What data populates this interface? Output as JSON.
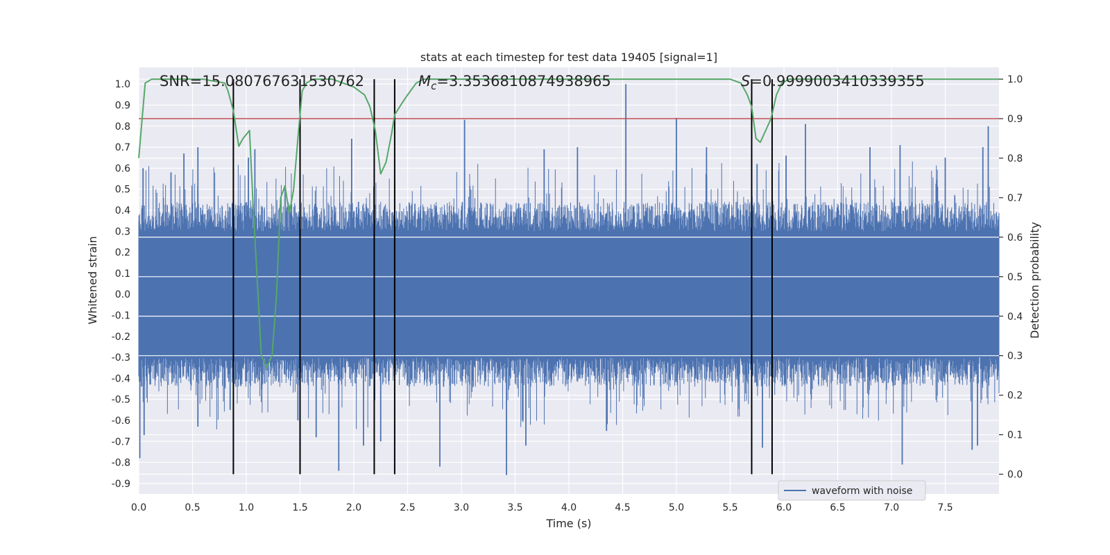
{
  "chart_data": {
    "type": "line",
    "title": "stats at each timestep for test data 19405 [signal=1]",
    "xlabel": "Time (s)",
    "ylabel": "Whitened strain",
    "y2label": "Detection probability",
    "xlim": [
      0.0,
      8.0
    ],
    "ylim": [
      -0.95,
      1.08
    ],
    "y2lim": [
      -0.05,
      1.03
    ],
    "xticks": [
      "0.0",
      "0.5",
      "1.0",
      "1.5",
      "2.0",
      "2.5",
      "3.0",
      "3.5",
      "4.0",
      "4.5",
      "5.0",
      "5.5",
      "6.0",
      "6.5",
      "7.0",
      "7.5"
    ],
    "yticks": [
      "-0.9",
      "-0.8",
      "-0.7",
      "-0.6",
      "-0.5",
      "-0.4",
      "-0.3",
      "-0.2",
      "-0.1",
      "0.0",
      "0.1",
      "0.2",
      "0.3",
      "0.4",
      "0.5",
      "0.6",
      "0.7",
      "0.8",
      "0.9",
      "1.0"
    ],
    "y2ticks": [
      "0.0",
      "0.1",
      "0.2",
      "0.3",
      "0.4",
      "0.5",
      "0.6",
      "0.7",
      "0.8",
      "0.9",
      "1.0"
    ],
    "grid": true,
    "legend_position": "bottom-right",
    "legend": [
      {
        "label": "waveform with noise",
        "color": "#4c72b0"
      }
    ],
    "annotations": {
      "snr": "SNR=15.080767631530762",
      "mc_base": "M",
      "mc_sub": "c",
      "mc_value": "=3.3536810874938965",
      "s_base": "S",
      "s_value": "=0.9999003410339355"
    },
    "threshold": {
      "y2": 0.9,
      "color": "#c44e52"
    },
    "vertical_markers": {
      "x": [
        0.88,
        1.5,
        2.19,
        2.38,
        5.7,
        5.89
      ],
      "y2_range": [
        0.0,
        1.0
      ],
      "color": "#000000"
    },
    "waveform": {
      "color": "#4c72b0",
      "dense_amplitude": 0.3,
      "peaks": [
        {
          "x": 0.01,
          "y": -0.78
        },
        {
          "x": 0.05,
          "y": -0.67
        },
        {
          "x": 0.04,
          "y": 0.6
        },
        {
          "x": 0.3,
          "y": 0.58
        },
        {
          "x": 0.42,
          "y": 0.67
        },
        {
          "x": 0.55,
          "y": 0.7
        },
        {
          "x": 0.55,
          "y": -0.63
        },
        {
          "x": 0.85,
          "y": -0.55
        },
        {
          "x": 1.02,
          "y": 0.65
        },
        {
          "x": 1.08,
          "y": 0.69
        },
        {
          "x": 1.48,
          "y": -0.6
        },
        {
          "x": 1.65,
          "y": -0.68
        },
        {
          "x": 1.86,
          "y": -0.84
        },
        {
          "x": 1.98,
          "y": 0.74
        },
        {
          "x": 2.09,
          "y": -0.72
        },
        {
          "x": 2.25,
          "y": -0.7
        },
        {
          "x": 2.38,
          "y": 0.54
        },
        {
          "x": 2.8,
          "y": -0.82
        },
        {
          "x": 3.03,
          "y": 0.83
        },
        {
          "x": 3.42,
          "y": -0.86
        },
        {
          "x": 3.6,
          "y": -0.72
        },
        {
          "x": 3.77,
          "y": 0.69
        },
        {
          "x": 4.08,
          "y": 0.7
        },
        {
          "x": 4.53,
          "y": 1.0
        },
        {
          "x": 4.35,
          "y": -0.65
        },
        {
          "x": 5.0,
          "y": 0.84
        },
        {
          "x": 5.28,
          "y": 0.7
        },
        {
          "x": 5.8,
          "y": -0.73
        },
        {
          "x": 5.75,
          "y": 0.62
        },
        {
          "x": 6.02,
          "y": 0.66
        },
        {
          "x": 6.2,
          "y": 0.81
        },
        {
          "x": 6.8,
          "y": 0.7
        },
        {
          "x": 7.08,
          "y": 0.71
        },
        {
          "x": 7.1,
          "y": -0.81
        },
        {
          "x": 7.5,
          "y": 0.65
        },
        {
          "x": 7.75,
          "y": -0.74
        },
        {
          "x": 7.85,
          "y": 0.7
        },
        {
          "x": 7.9,
          "y": 0.8
        },
        {
          "x": 7.8,
          "y": -0.72
        }
      ]
    },
    "series": [
      {
        "name": "",
        "axis": "y2",
        "color": "#55a868",
        "x": [
          0.0,
          0.06,
          0.12,
          0.3,
          0.6,
          0.8,
          0.83,
          0.88,
          0.93,
          0.97,
          1.0,
          1.03,
          1.06,
          1.1,
          1.14,
          1.19,
          1.24,
          1.28,
          1.32,
          1.36,
          1.4,
          1.44,
          1.48,
          1.52,
          1.56,
          1.62,
          1.7,
          1.8,
          1.9,
          2.0,
          2.1,
          2.15,
          2.2,
          2.25,
          2.3,
          2.35,
          2.38,
          2.45,
          2.5,
          2.58,
          2.65,
          2.75,
          3.0,
          3.5,
          4.0,
          4.5,
          5.0,
          5.3,
          5.5,
          5.6,
          5.66,
          5.7,
          5.74,
          5.78,
          5.83,
          5.88,
          5.93,
          5.98,
          6.05,
          6.3,
          6.7,
          7.0,
          7.4,
          7.6,
          8.0
        ],
        "y": [
          0.8,
          0.99,
          1.0,
          1.0,
          1.0,
          0.99,
          0.97,
          0.92,
          0.83,
          0.85,
          0.86,
          0.87,
          0.7,
          0.5,
          0.3,
          0.27,
          0.3,
          0.45,
          0.7,
          0.73,
          0.66,
          0.72,
          0.85,
          0.97,
          0.99,
          1.0,
          1.0,
          1.0,
          0.99,
          0.98,
          0.96,
          0.93,
          0.87,
          0.76,
          0.79,
          0.86,
          0.91,
          0.94,
          0.96,
          0.99,
          1.0,
          1.0,
          1.0,
          1.0,
          1.0,
          1.0,
          1.0,
          1.0,
          1.0,
          0.99,
          0.96,
          0.93,
          0.85,
          0.84,
          0.87,
          0.9,
          0.96,
          0.99,
          1.0,
          1.0,
          1.0,
          1.0,
          1.0,
          1.0,
          1.0
        ]
      }
    ]
  }
}
